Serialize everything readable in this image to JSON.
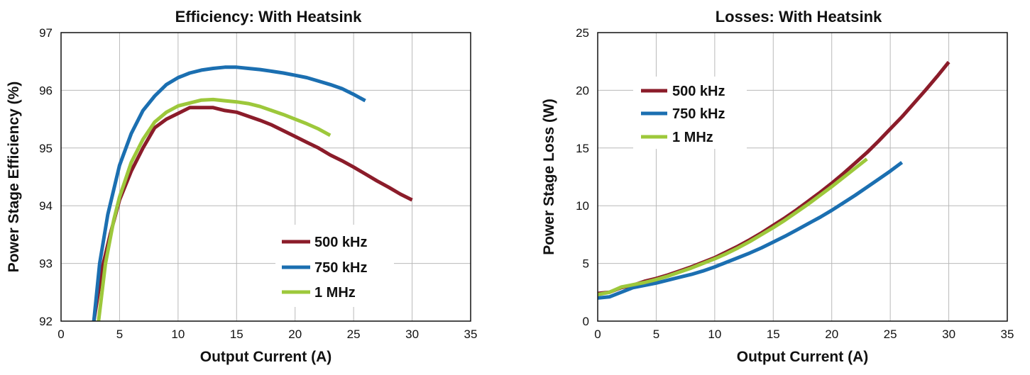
{
  "chart_data": [
    {
      "type": "line",
      "title": "Efficiency: With Heatsink",
      "xlabel": "Output Current (A)",
      "ylabel": "Power Stage Efficiency (%)",
      "xlim": [
        0,
        35
      ],
      "ylim": [
        92,
        97
      ],
      "xticks": [
        "0",
        "5",
        "10",
        "15",
        "20",
        "25",
        "30",
        "35"
      ],
      "yticks": [
        "92",
        "93",
        "94",
        "95",
        "96",
        "97"
      ],
      "grid": true,
      "legend_position": "bottom-right",
      "series": [
        {
          "name": "500 kHz",
          "color": "#8b1c2a",
          "points": [
            [
              2.8,
              92.0
            ],
            [
              3.5,
              92.9
            ],
            [
              4.2,
              93.5
            ],
            [
              5,
              94.1
            ],
            [
              6,
              94.6
            ],
            [
              7,
              95.0
            ],
            [
              8,
              95.35
            ],
            [
              9,
              95.5
            ],
            [
              10,
              95.6
            ],
            [
              11,
              95.7
            ],
            [
              12,
              95.7
            ],
            [
              13,
              95.7
            ],
            [
              14,
              95.65
            ],
            [
              15,
              95.62
            ],
            [
              16,
              95.55
            ],
            [
              17,
              95.48
            ],
            [
              18,
              95.4
            ],
            [
              19,
              95.3
            ],
            [
              20,
              95.2
            ],
            [
              21,
              95.1
            ],
            [
              22,
              95.0
            ],
            [
              23,
              94.88
            ],
            [
              24,
              94.78
            ],
            [
              25,
              94.67
            ],
            [
              26,
              94.55
            ],
            [
              27,
              94.43
            ],
            [
              28,
              94.32
            ],
            [
              29,
              94.2
            ],
            [
              30,
              94.1
            ]
          ]
        },
        {
          "name": "750 kHz",
          "color": "#1b6fb1",
          "points": [
            [
              2.8,
              92.0
            ],
            [
              3.3,
              93.0
            ],
            [
              4,
              93.85
            ],
            [
              5,
              94.7
            ],
            [
              6,
              95.25
            ],
            [
              7,
              95.65
            ],
            [
              8,
              95.9
            ],
            [
              9,
              96.1
            ],
            [
              10,
              96.22
            ],
            [
              11,
              96.3
            ],
            [
              12,
              96.35
            ],
            [
              13,
              96.38
            ],
            [
              14,
              96.4
            ],
            [
              15,
              96.4
            ],
            [
              16,
              96.38
            ],
            [
              17,
              96.36
            ],
            [
              18,
              96.33
            ],
            [
              19,
              96.3
            ],
            [
              20,
              96.26
            ],
            [
              21,
              96.22
            ],
            [
              22,
              96.16
            ],
            [
              23,
              96.1
            ],
            [
              24,
              96.03
            ],
            [
              25,
              95.93
            ],
            [
              26,
              95.82
            ]
          ]
        },
        {
          "name": "1 MHz",
          "color": "#9dc83b",
          "points": [
            [
              3.2,
              92.0
            ],
            [
              3.8,
              93.0
            ],
            [
              4.5,
              93.75
            ],
            [
              5,
              94.15
            ],
            [
              6,
              94.75
            ],
            [
              7,
              95.15
            ],
            [
              8,
              95.45
            ],
            [
              9,
              95.62
            ],
            [
              10,
              95.73
            ],
            [
              11,
              95.78
            ],
            [
              12,
              95.83
            ],
            [
              13,
              95.84
            ],
            [
              14,
              95.82
            ],
            [
              15,
              95.8
            ],
            [
              16,
              95.77
            ],
            [
              17,
              95.72
            ],
            [
              18,
              95.65
            ],
            [
              19,
              95.58
            ],
            [
              20,
              95.5
            ],
            [
              21,
              95.42
            ],
            [
              22,
              95.33
            ],
            [
              23,
              95.22
            ]
          ]
        }
      ]
    },
    {
      "type": "line",
      "title": "Losses: With Heatsink",
      "xlabel": "Output Current (A)",
      "ylabel": "Power Stage Loss (W)",
      "xlim": [
        0,
        35
      ],
      "ylim": [
        0,
        25
      ],
      "xticks": [
        "0",
        "5",
        "10",
        "15",
        "20",
        "25",
        "30",
        "35"
      ],
      "yticks": [
        "0",
        "5",
        "10",
        "15",
        "20",
        "25"
      ],
      "grid": true,
      "legend_position": "top-left",
      "series": [
        {
          "name": "500 kHz",
          "color": "#8b1c2a",
          "points": [
            [
              0,
              2.4
            ],
            [
              1,
              2.5
            ],
            [
              2,
              2.9
            ],
            [
              3,
              3.1
            ],
            [
              4,
              3.45
            ],
            [
              5,
              3.7
            ],
            [
              6,
              4.0
            ],
            [
              7,
              4.35
            ],
            [
              8,
              4.7
            ],
            [
              9,
              5.1
            ],
            [
              10,
              5.5
            ],
            [
              11,
              6.0
            ],
            [
              12,
              6.5
            ],
            [
              13,
              7.05
            ],
            [
              14,
              7.65
            ],
            [
              15,
              8.3
            ],
            [
              16,
              8.95
            ],
            [
              17,
              9.65
            ],
            [
              18,
              10.4
            ],
            [
              19,
              11.15
            ],
            [
              20,
              11.95
            ],
            [
              21,
              12.8
            ],
            [
              22,
              13.7
            ],
            [
              23,
              14.6
            ],
            [
              24,
              15.6
            ],
            [
              25,
              16.65
            ],
            [
              26,
              17.7
            ],
            [
              27,
              18.85
            ],
            [
              28,
              20.0
            ],
            [
              29,
              21.2
            ],
            [
              30,
              22.45
            ]
          ]
        },
        {
          "name": "750 kHz",
          "color": "#1b6fb1",
          "points": [
            [
              0,
              2.0
            ],
            [
              1,
              2.1
            ],
            [
              2,
              2.5
            ],
            [
              3,
              2.9
            ],
            [
              4,
              3.1
            ],
            [
              5,
              3.3
            ],
            [
              6,
              3.55
            ],
            [
              7,
              3.8
            ],
            [
              8,
              4.05
            ],
            [
              9,
              4.35
            ],
            [
              10,
              4.7
            ],
            [
              11,
              5.1
            ],
            [
              12,
              5.5
            ],
            [
              13,
              5.9
            ],
            [
              14,
              6.35
            ],
            [
              15,
              6.85
            ],
            [
              16,
              7.35
            ],
            [
              17,
              7.9
            ],
            [
              18,
              8.45
            ],
            [
              19,
              9.0
            ],
            [
              20,
              9.6
            ],
            [
              21,
              10.25
            ],
            [
              22,
              10.9
            ],
            [
              23,
              11.6
            ],
            [
              24,
              12.3
            ],
            [
              25,
              13.0
            ],
            [
              26,
              13.75
            ]
          ]
        },
        {
          "name": "1 MHz",
          "color": "#9dc83b",
          "points": [
            [
              0,
              2.3
            ],
            [
              1,
              2.5
            ],
            [
              2,
              2.95
            ],
            [
              3,
              3.15
            ],
            [
              4,
              3.35
            ],
            [
              5,
              3.6
            ],
            [
              6,
              3.9
            ],
            [
              7,
              4.25
            ],
            [
              8,
              4.6
            ],
            [
              9,
              5.0
            ],
            [
              10,
              5.4
            ],
            [
              11,
              5.85
            ],
            [
              12,
              6.35
            ],
            [
              13,
              6.9
            ],
            [
              14,
              7.5
            ],
            [
              15,
              8.1
            ],
            [
              16,
              8.75
            ],
            [
              17,
              9.45
            ],
            [
              18,
              10.15
            ],
            [
              19,
              10.9
            ],
            [
              20,
              11.65
            ],
            [
              21,
              12.45
            ],
            [
              22,
              13.25
            ],
            [
              23,
              14.05
            ]
          ]
        }
      ]
    }
  ]
}
